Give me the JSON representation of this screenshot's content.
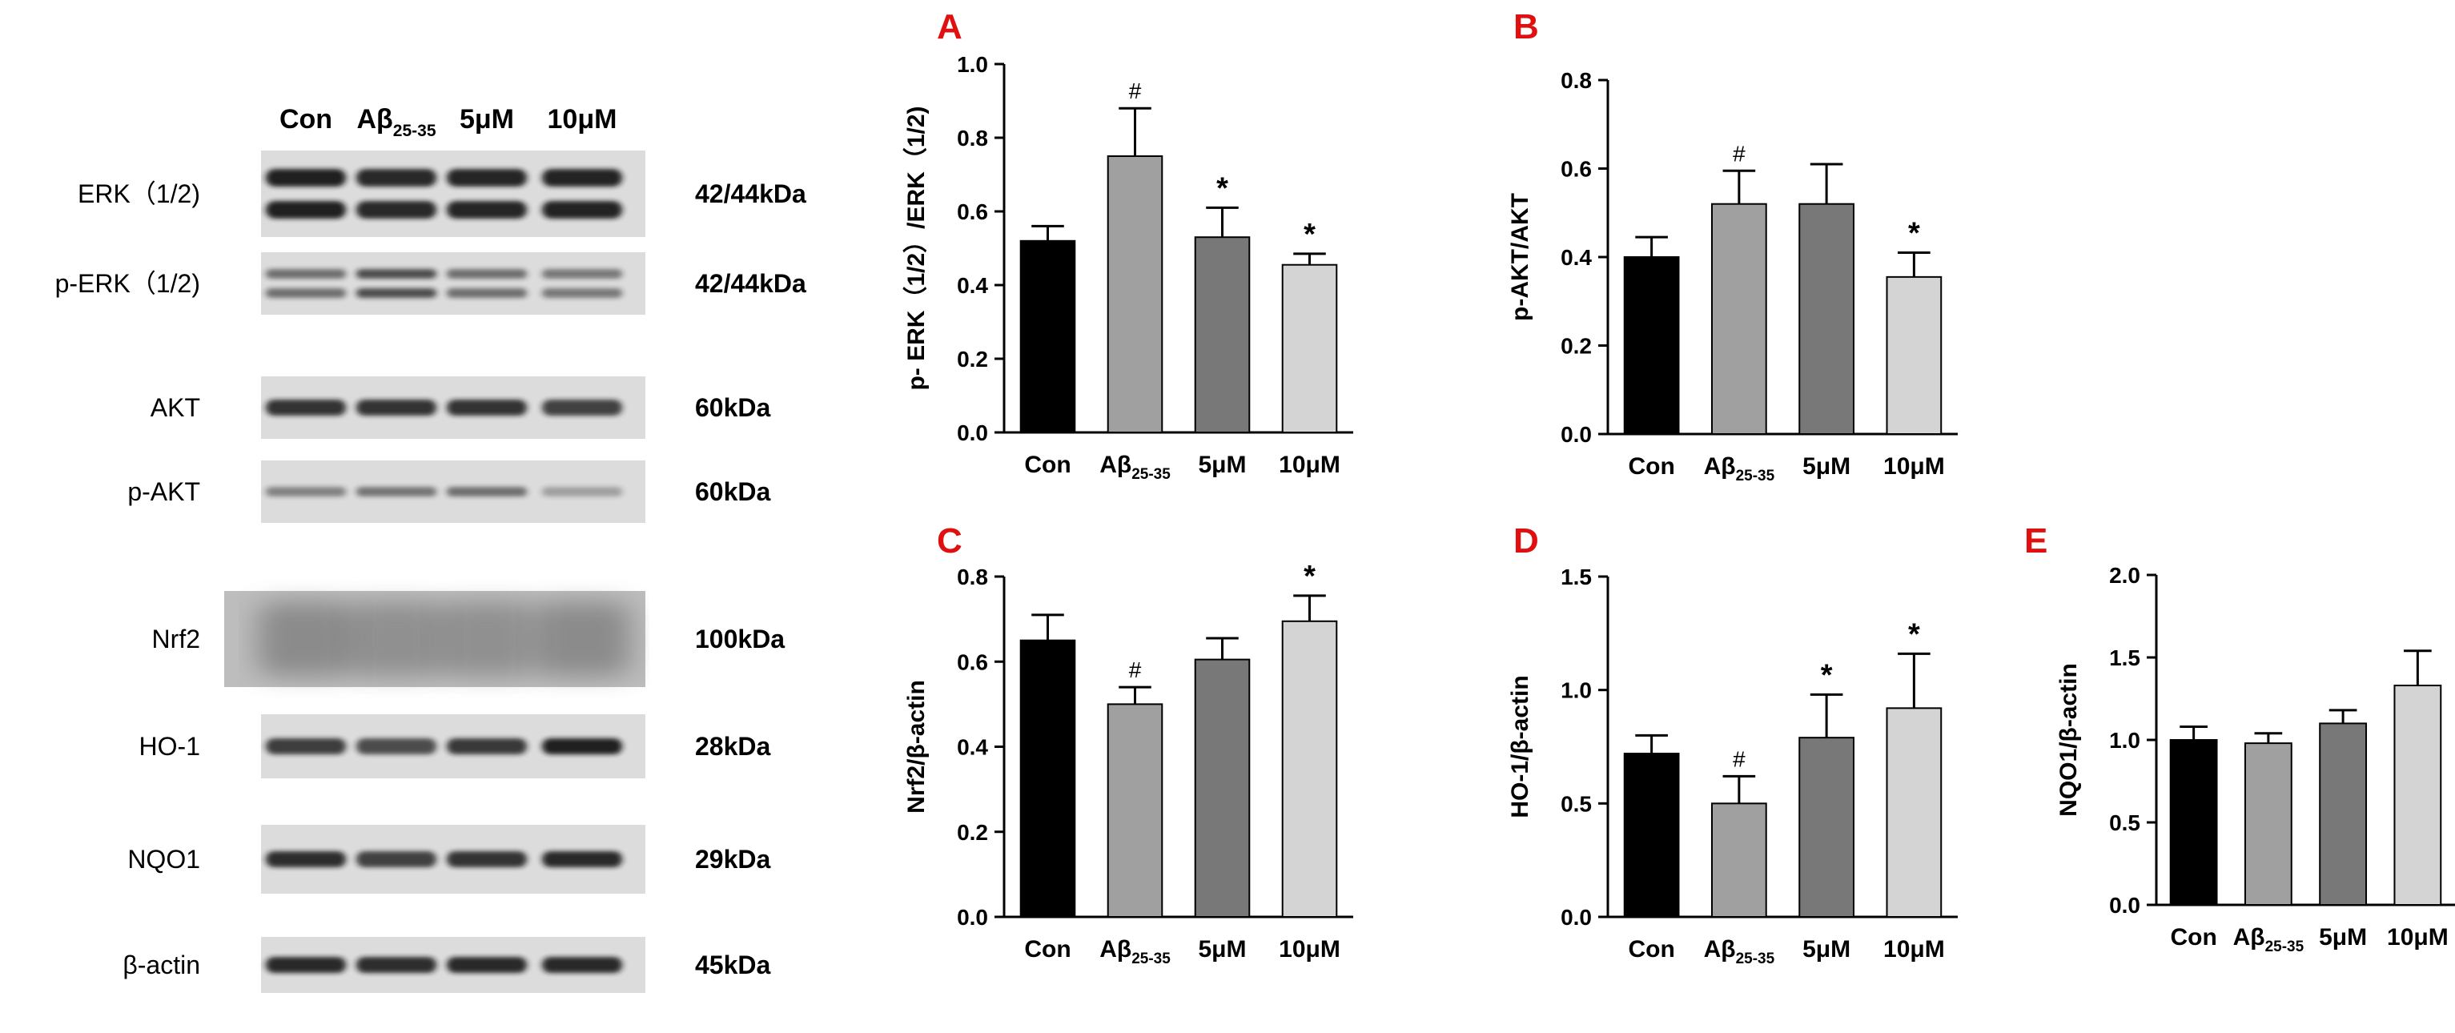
{
  "blot": {
    "lanes": [
      "Con",
      "Aβ",
      "5μM",
      "10μM"
    ],
    "lane_ab_sub": "25-35",
    "rows": [
      {
        "label": "ERK（1/2)",
        "size": "42/44kDa",
        "kind": "double",
        "intensity": [
          0.95,
          0.9,
          0.92,
          0.93
        ]
      },
      {
        "label": "p-ERK（1/2)",
        "size": "42/44kDa",
        "kind": "double-faint",
        "intensity": [
          0.55,
          0.72,
          0.55,
          0.5
        ]
      },
      {
        "label": "AKT",
        "size": "60kDa",
        "kind": "single",
        "intensity": [
          0.85,
          0.85,
          0.85,
          0.78
        ]
      },
      {
        "label": "p-AKT",
        "size": "60kDa",
        "kind": "single-faint",
        "intensity": [
          0.45,
          0.52,
          0.55,
          0.3
        ]
      },
      {
        "label": "Nrf2",
        "size": "100kDa",
        "kind": "smear",
        "intensity": [
          0.5,
          0.45,
          0.45,
          0.5
        ]
      },
      {
        "label": "HO-1",
        "size": "28kDa",
        "kind": "single",
        "intensity": [
          0.8,
          0.72,
          0.82,
          0.95
        ]
      },
      {
        "label": "NQO1",
        "size": "29kDa",
        "kind": "single",
        "intensity": [
          0.88,
          0.78,
          0.85,
          0.9
        ]
      },
      {
        "label": "β-actin",
        "size": "45kDa",
        "kind": "single",
        "intensity": [
          0.9,
          0.88,
          0.9,
          0.9
        ]
      }
    ]
  },
  "colors": {
    "panel_letter": "#e01010",
    "bars": [
      "#000000",
      "#a0a0a0",
      "#787878",
      "#d4d4d4"
    ],
    "blot_bg": "#dcdcdc",
    "band": "#151515"
  },
  "categories": [
    "Con",
    "Aβ",
    "5μM",
    "10μM"
  ],
  "category_sub": "25-35",
  "chart_data": [
    {
      "type": "bar",
      "panel": "A",
      "ylabel": "p- ERK（1/2）/ERK（1/2)",
      "ylim": [
        0,
        1.0
      ],
      "ticks": [
        "0.0",
        "0.2",
        "0.4",
        "0.6",
        "0.8",
        "1.0"
      ],
      "values": [
        0.52,
        0.75,
        0.53,
        0.455
      ],
      "errors": [
        0.04,
        0.13,
        0.08,
        0.03
      ],
      "marks": [
        "",
        "#",
        "*",
        "*"
      ]
    },
    {
      "type": "bar",
      "panel": "B",
      "ylabel": "p-AKT/AKT",
      "ylim": [
        0,
        0.8
      ],
      "ticks": [
        "0.0",
        "0.2",
        "0.4",
        "0.6",
        "0.8"
      ],
      "values": [
        0.4,
        0.52,
        0.52,
        0.355
      ],
      "errors": [
        0.045,
        0.075,
        0.09,
        0.055
      ],
      "marks": [
        "",
        "#",
        "",
        "*"
      ]
    },
    {
      "type": "bar",
      "panel": "C",
      "ylabel": "Nrf2/β-actin",
      "ylim": [
        0,
        0.8
      ],
      "ticks": [
        "0.0",
        "0.2",
        "0.4",
        "0.6",
        "0.8"
      ],
      "values": [
        0.65,
        0.5,
        0.605,
        0.695
      ],
      "errors": [
        0.06,
        0.04,
        0.05,
        0.06
      ],
      "marks": [
        "",
        "#",
        "",
        "*"
      ]
    },
    {
      "type": "bar",
      "panel": "D",
      "ylabel": "HO-1/β-actin",
      "ylim": [
        0,
        1.5
      ],
      "ticks": [
        "0.0",
        "0.5",
        "1.0",
        "1.5"
      ],
      "values": [
        0.72,
        0.5,
        0.79,
        0.92
      ],
      "errors": [
        0.08,
        0.12,
        0.19,
        0.24
      ],
      "marks": [
        "",
        "#",
        "*",
        "*"
      ]
    },
    {
      "type": "bar",
      "panel": "E",
      "ylabel": "NQO1/β-actin",
      "ylim": [
        0,
        2.0
      ],
      "ticks": [
        "0.0",
        "0.5",
        "1.0",
        "1.5",
        "2.0"
      ],
      "values": [
        1.0,
        0.98,
        1.1,
        1.33
      ],
      "errors": [
        0.08,
        0.06,
        0.08,
        0.21
      ],
      "marks": [
        "",
        "",
        "",
        ""
      ]
    }
  ]
}
